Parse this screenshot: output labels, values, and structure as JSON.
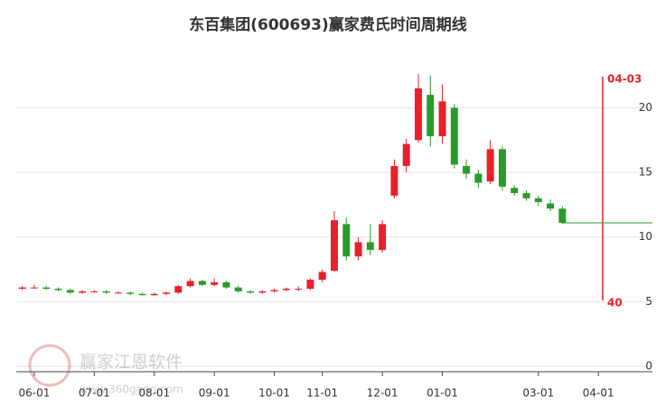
{
  "chart_data": {
    "type": "candlestick",
    "title": "东百集团(600693)赢家费氏时间周期线",
    "categories": [
      null,
      "06-01",
      null,
      null,
      null,
      null,
      "07-01",
      null,
      null,
      null,
      null,
      "08-01",
      null,
      null,
      null,
      null,
      "09-01",
      null,
      null,
      null,
      null,
      "10-01",
      null,
      null,
      null,
      "11-01",
      null,
      null,
      null,
      null,
      "12-01",
      null,
      null,
      null,
      null,
      "01-01",
      null,
      null,
      null,
      null,
      null,
      null,
      null,
      "03-01",
      null,
      null,
      null,
      null,
      "04-01",
      null,
      null,
      null,
      null
    ],
    "open": [
      6.0,
      6.1,
      6.1,
      6.0,
      5.9,
      5.7,
      5.8,
      5.8,
      5.7,
      5.7,
      5.6,
      5.5,
      5.6,
      5.7,
      6.2,
      6.6,
      6.3,
      6.5,
      6.1,
      5.8,
      5.7,
      5.8,
      5.9,
      6.0,
      6.0,
      6.7,
      7.4,
      11.0,
      8.5,
      9.6,
      9.0,
      13.2,
      15.5,
      17.5,
      21.0,
      17.8,
      20.0,
      15.5,
      14.9,
      14.3,
      16.8,
      13.8,
      13.4,
      13.0,
      12.6,
      12.2,
      null,
      null,
      null,
      null,
      null,
      null,
      null
    ],
    "high": [
      6.2,
      6.3,
      6.2,
      6.1,
      6.0,
      5.9,
      5.9,
      5.9,
      5.8,
      5.8,
      5.7,
      5.7,
      5.8,
      6.3,
      6.8,
      6.7,
      6.8,
      6.6,
      6.2,
      5.9,
      5.9,
      6.0,
      6.1,
      6.2,
      6.8,
      7.5,
      12.0,
      11.5,
      10.0,
      11.0,
      11.3,
      16.0,
      17.6,
      22.6,
      22.5,
      21.8,
      20.3,
      16.0,
      15.2,
      17.5,
      17.0,
      14.0,
      13.6,
      13.2,
      12.9,
      12.4,
      null,
      null,
      null,
      null,
      null,
      null,
      null
    ],
    "low": [
      5.9,
      6.0,
      5.9,
      5.8,
      5.6,
      5.6,
      5.7,
      5.6,
      5.6,
      5.5,
      5.5,
      5.5,
      5.5,
      5.6,
      6.1,
      6.2,
      6.2,
      6.0,
      5.7,
      5.6,
      5.6,
      5.7,
      5.8,
      5.8,
      5.9,
      6.5,
      7.3,
      8.2,
      8.2,
      8.6,
      8.8,
      13.0,
      15.0,
      17.3,
      17.0,
      17.2,
      15.3,
      14.5,
      13.8,
      14.1,
      13.6,
      13.2,
      12.8,
      12.4,
      12.0,
      11.0,
      null,
      null,
      null,
      null,
      null,
      null,
      null
    ],
    "close": [
      6.1,
      6.1,
      6.0,
      5.9,
      5.7,
      5.8,
      5.8,
      5.7,
      5.7,
      5.6,
      5.5,
      5.6,
      5.7,
      6.2,
      6.6,
      6.3,
      6.5,
      6.1,
      5.8,
      5.7,
      5.8,
      5.9,
      6.0,
      6.0,
      6.7,
      7.3,
      11.3,
      8.5,
      9.6,
      9.0,
      11.0,
      15.5,
      17.2,
      21.5,
      17.8,
      20.5,
      15.6,
      14.9,
      14.2,
      16.8,
      13.9,
      13.4,
      13.0,
      12.7,
      12.2,
      11.1,
      null,
      null,
      null,
      null,
      null,
      null,
      null
    ],
    "reference_line_value": 11.1,
    "up_color": "#e8202a",
    "down_color": "#2a9a2a",
    "ylim": [
      0,
      24.5
    ],
    "yticks": [
      0,
      5,
      10,
      15,
      20
    ],
    "grid": true,
    "marker": {
      "date_label": "04-03",
      "count_label": "40"
    },
    "watermark": {
      "text": "赢家江恩软件",
      "url": "www.360gann.com"
    }
  }
}
